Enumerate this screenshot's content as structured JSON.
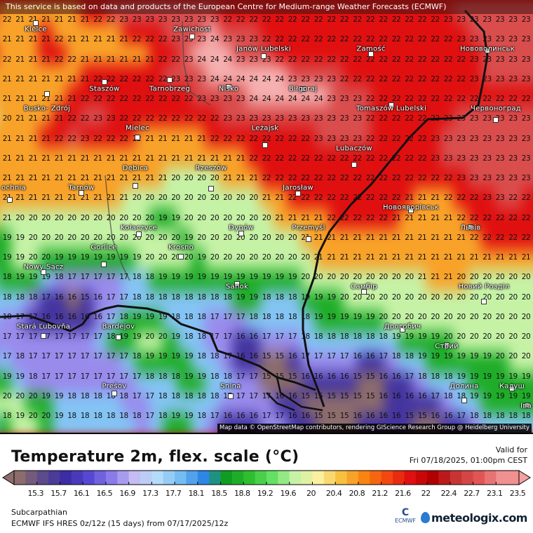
{
  "notice": "This service is based on data and products of the European Centre for Medium-range Weather Forecasts (ECMWF)",
  "attribution": "Map data © OpenStreetMap contributors, rendering GIScience Research Group @ Heidelberg University",
  "map": {
    "grid": [
      "22 21 21 21 21 21 21 22 22 23 23 23 23 23 23 23 23 22 22 22 22 22 22 22 22 22 22 22 22 22 22 22 22 22 23 23 23 23 23 23 23",
      "21 21 21 21 22 21 21 21 21 21 22 22 22 23 23 23 24 23 23 23 22 22 22 22 22 22 22 22 22 22 22 22 22 22 22 23 23 23 23 23 23",
      "22 21 21 21 22 22 21 21 21 21 21 21 22 22 23 24 24 24 23 23 23 22 22 22 22 22 22 22 22 22 22 22 22 22 22 22 23 23 23 23 23",
      "21 21 21 21 21 21 21 22 22 22 22 22 22 23 23 23 24 24 24 24 24 24 23 23 23 23 22 22 22 22 22 22 22 22 22 22 23 23 23 23 23",
      "21 21 21 21 21 21 22 22 22 22 22 22 22 22 22 23 23 23 23 24 24 24 24 24 24 23 23 23 22 22 22 22 22 22 22 22 22 22 22 22 22",
      "20 21 21 21 21 22 22 23 23 22 22 22 22 22 22 22 22 23 23 23 23 23 23 23 23 23 23 23 22 22 22 22 22 22 23 23 23 23 23 23 23",
      "21 21 21 21 22 22 23 22 22 22 22 21 21 21 21 21 22 22 22 22 22 22 22 22 23 23 23 23 22 22 22 22 22 23 23 23 23 23 23 23 23",
      "21 21 21 21 21 21 21 21 21 21 21 21 21 21 21 21 21 21 21 22 22 22 22 22 22 22 22 22 22 22 22 22 22 23 23 23 23 23 23 23 23",
      "21 21 21 21 21 21 21 21 21 21 21 21 21 20 20 20 20 21 21 21 22 22 22 22 22 22 22 22 22 22 22 22 22 22 22 23 23 23 23 23 23",
      "21 21 21 21 21 21 21 21 21 21 20 20 20 20 20 20 20 20 20 20 21 21 22 22 22 22 22 22 22 22 22 21 21 21 22 22 22 23 23 22 22",
      "21 20 20 20 20 20 20 20 20 20 20 20 19 19 20 20 20 20 20 20 20 21 21 21 21 22 22 22 22 22 21 21 21 21 21 22 22 22 22 22 22",
      "19 19 20 20 20 20 20 20 20 20 20 20 20 20 19 20 20 20 20 20 20 20 20 21 21 21 21 21 21 21 21 21 21 21 21 21 22 22 22 22 22",
      "19 19 20 20 19 19 19 19 19 19 19 20 20 20 20 19 20 20 20 20 20 20 20 20 21 21 21 21 21 21 21 21 21 21 21 21 21 21 21 21 21",
      "18 19 19 19 18 17 17 17 17 17 18 18 19 19 19 19 19 19 19 19 19 19 19 20 20 20 20 20 20 20 20 20 21 21 21 20 20 20 20 20 20",
      "18 18 18 17 16 16 15 16 17 17 18 18 18 18 18 18 18 18 19 19 18 18 18 19 19 19 20 20 20 20 20 20 20 20 20 20 20 20 20 20 20",
      "18 17 17 16 16 16 16 16 17 18 19 19 19 18 18 18 17 17 17 18 18 18 18 18 19 19 19 19 19 20 20 20 20 20 20 20 20 20 20 20 20",
      "17 17 17 17 17 17 17 17 18 19 19 20 20 19 18 18 17 17 16 16 17 17 17 18 18 18 18 18 18 18 19 19 19 19 20 20 20 20 20 20 20",
      "17 18 17 17 17 17 17 17 17 17 18 19 19 19 19 18 18 17 16 16 15 15 16 17 17 17 17 16 16 17 18 18 19 19 19 19 19 19 20 20 20",
      "19 19 18 17 17 17 17 17 17 17 17 18 18 18 19 19 18 18 17 17 15 15 15 16 16 16 16 15 15 16 16 17 18 18 18 19 19 19 19 19 19",
      "20 20 20 19 19 18 18 18 18 18 17 17 18 18 18 18 18 17 17 17 17 16 16 15 15 15 15 15 15 16 16 16 16 17 18 18 19 19 19 19 19",
      "18 19 20 20 19 18 18 18 18 18 18 17 18 19 19 18 17 16 16 16 17 17 16 16 15 15 15 16 16 16 16 15 15 16 16 17 18 18 18 18 18"
    ],
    "cities": [
      "Kielce",
      "Zawichost",
      "Janów\nLubelski",
      "Zamość",
      "Нововолинськ",
      "Staszów",
      "Tarnobrzeg",
      "Nisko",
      "Biłgoraj",
      "Busko-\nZdrój",
      "Tomaszów\nLubelski",
      "Червоноград",
      "Mielec",
      "Leżajsk",
      "Lubaczów",
      "Dębica",
      "Rzeszów",
      "Tarnów",
      "Jarosław",
      "ochnia",
      "Новояворівськ",
      "Львів",
      "Kołaczyce",
      "Dynów",
      "Przemyśl",
      "Krosno",
      "Gorlice",
      "Nowy Sącz",
      "Sanok",
      "Самбір",
      "Новий\nРозділ",
      "Stará Ľubovňa",
      "Bardejov",
      "Дрогобич",
      "Стрий",
      "Калуш",
      "Prešov",
      "Snina",
      "Долина",
      "Іва"
    ]
  },
  "legend": {
    "title": "Temperature 2m, flex. scale (°C)",
    "valid_label": "Valid for",
    "valid_date": "Fri 07/18/2025, 01:00pm CEST",
    "ticks": [
      "15.3",
      "15.7",
      "16.1",
      "16.5",
      "16.9",
      "17.3",
      "17.7",
      "18.1",
      "18.5",
      "18.8",
      "19.2",
      "19.6",
      "20",
      "20.4",
      "20.8",
      "21.2",
      "21.6",
      "22",
      "22.4",
      "22.7",
      "23.1",
      "23.5"
    ],
    "colors": [
      "#8c6c6c",
      "#5c4a8c",
      "#3c2ca6",
      "#5648d2",
      "#8a7aea",
      "#c4bcf2",
      "#b4dcfa",
      "#74bcf2",
      "#2e86e6",
      "#0f9c22",
      "#2fbe30",
      "#64e064",
      "#c6f2a6",
      "#faf0a0",
      "#f8c040",
      "#f88412",
      "#f24810",
      "#e01010",
      "#b00000",
      "#c83434",
      "#e05656",
      "#f09090"
    ]
  },
  "footer": {
    "region": "Subcarpathian",
    "model": "ECMWF IFS HRES 0z/12z (15 days) from  07/17/2025/12z",
    "ecmwf_logo": "ECMWF",
    "site": "meteologix.com"
  }
}
